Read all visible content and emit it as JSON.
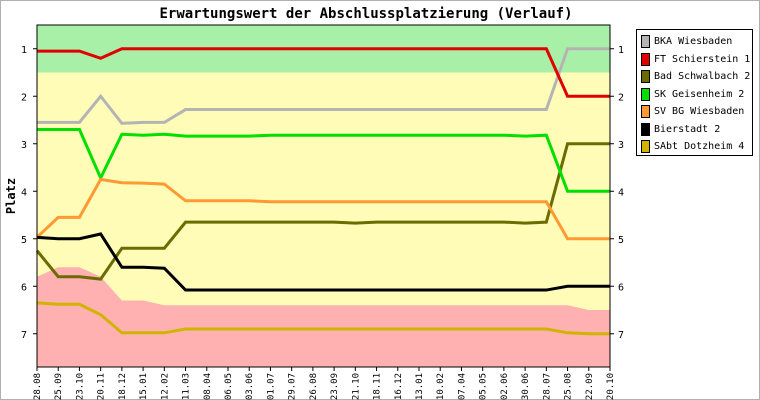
{
  "chart_data": {
    "type": "line",
    "title": "Erwartungswert der Abschlussplatzierung (Verlauf)",
    "ylabel": "Platz",
    "xlabel": "",
    "ylim": [
      0.5,
      7.7
    ],
    "y_inverted": true,
    "y_ticks": [
      1,
      2,
      3,
      4,
      5,
      6,
      7
    ],
    "categories": [
      "28.08",
      "25.09",
      "23.10",
      "20.11",
      "18.12",
      "15.01",
      "12.02",
      "11.03",
      "08.04",
      "06.05",
      "03.06",
      "01.07",
      "29.07",
      "26.08",
      "23.09",
      "21.10",
      "18.11",
      "16.12",
      "13.01",
      "10.02",
      "07.04",
      "05.05",
      "02.06",
      "30.06",
      "28.07",
      "25.08",
      "22.09",
      "20.10"
    ],
    "bands": [
      {
        "name": "promotion",
        "color": "#a8f0a8",
        "to": [
          1.5,
          1.5,
          1.5,
          1.5,
          1.5,
          1.5,
          1.5,
          1.5,
          1.5,
          1.5,
          1.5,
          1.5,
          1.5,
          1.5,
          1.5,
          1.5,
          1.5,
          1.5,
          1.5,
          1.5,
          1.5,
          1.5,
          1.5,
          1.5,
          1.5,
          1.5,
          1.5,
          1.5
        ]
      },
      {
        "name": "middle",
        "color": "#fffcb8"
      },
      {
        "name": "relegation",
        "color": "#ffb0b0",
        "from": [
          5.8,
          5.6,
          5.6,
          5.8,
          6.3,
          6.3,
          6.4,
          6.4,
          6.4,
          6.4,
          6.4,
          6.4,
          6.4,
          6.4,
          6.4,
          6.4,
          6.4,
          6.4,
          6.4,
          6.4,
          6.4,
          6.4,
          6.4,
          6.4,
          6.4,
          6.4,
          6.5,
          6.5
        ]
      }
    ],
    "series": [
      {
        "name": "BKA Wiesbaden",
        "color": "#b4b4b4",
        "values": [
          2.55,
          2.55,
          2.55,
          2.0,
          2.57,
          2.55,
          2.55,
          2.28,
          2.28,
          2.28,
          2.28,
          2.28,
          2.28,
          2.28,
          2.28,
          2.28,
          2.28,
          2.28,
          2.28,
          2.28,
          2.28,
          2.28,
          2.28,
          2.28,
          2.28,
          1.0,
          1.0,
          1.0
        ]
      },
      {
        "name": "FT Schierstein 1",
        "color": "#e00000",
        "values": [
          1.05,
          1.05,
          1.05,
          1.2,
          1.0,
          1.0,
          1.0,
          1.0,
          1.0,
          1.0,
          1.0,
          1.0,
          1.0,
          1.0,
          1.0,
          1.0,
          1.0,
          1.0,
          1.0,
          1.0,
          1.0,
          1.0,
          1.0,
          1.0,
          1.0,
          2.0,
          2.0,
          2.0
        ]
      },
      {
        "name": "Bad Schwalbach 2",
        "color": "#6b6b00",
        "values": [
          5.25,
          5.8,
          5.8,
          5.85,
          5.2,
          5.2,
          5.2,
          4.65,
          4.65,
          4.65,
          4.65,
          4.65,
          4.65,
          4.65,
          4.65,
          4.67,
          4.65,
          4.65,
          4.65,
          4.65,
          4.65,
          4.65,
          4.65,
          4.67,
          4.65,
          3.0,
          3.0,
          3.0
        ]
      },
      {
        "name": "SK Geisenheim 2",
        "color": "#00e000",
        "values": [
          2.7,
          2.7,
          2.7,
          3.72,
          2.8,
          2.82,
          2.8,
          2.84,
          2.84,
          2.84,
          2.84,
          2.82,
          2.82,
          2.82,
          2.82,
          2.82,
          2.82,
          2.82,
          2.82,
          2.82,
          2.82,
          2.82,
          2.82,
          2.84,
          2.82,
          4.0,
          4.0,
          4.0
        ]
      },
      {
        "name": "SV BG Wiesbaden",
        "color": "#ff9933",
        "values": [
          4.97,
          4.55,
          4.55,
          3.75,
          3.82,
          3.83,
          3.85,
          4.2,
          4.2,
          4.2,
          4.2,
          4.22,
          4.22,
          4.22,
          4.22,
          4.22,
          4.22,
          4.22,
          4.22,
          4.22,
          4.22,
          4.22,
          4.22,
          4.22,
          4.22,
          5.0,
          5.0,
          5.0
        ]
      },
      {
        "name": "Bierstadt 2",
        "color": "#000000",
        "values": [
          4.97,
          5.0,
          5.0,
          4.9,
          5.6,
          5.6,
          5.62,
          6.08,
          6.08,
          6.08,
          6.08,
          6.08,
          6.08,
          6.08,
          6.08,
          6.08,
          6.08,
          6.08,
          6.08,
          6.08,
          6.08,
          6.08,
          6.08,
          6.08,
          6.08,
          6.0,
          6.0,
          6.0
        ]
      },
      {
        "name": "SAbt Dotzheim 4",
        "color": "#d0b400",
        "values": [
          6.35,
          6.38,
          6.38,
          6.6,
          6.98,
          6.98,
          6.98,
          6.9,
          6.9,
          6.9,
          6.9,
          6.9,
          6.9,
          6.9,
          6.9,
          6.9,
          6.9,
          6.9,
          6.9,
          6.9,
          6.9,
          6.9,
          6.9,
          6.9,
          6.9,
          6.98,
          7.0,
          7.0
        ]
      }
    ],
    "grid": false,
    "legend": "right"
  }
}
